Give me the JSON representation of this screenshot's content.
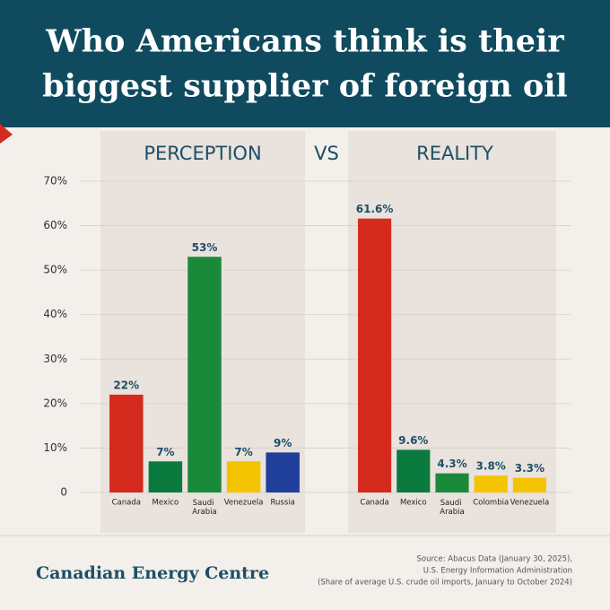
{
  "title_lines": [
    "Who Americans think is their",
    "biggest supplier of foreign oil"
  ],
  "vs": "VS",
  "chart_data": [
    {
      "type": "bar",
      "title": "PERCEPTION",
      "categories": [
        "Canada",
        "Mexico",
        "Saudi Arabia",
        "Venezuela",
        "Russia"
      ],
      "values": [
        22,
        7,
        53,
        7,
        9
      ],
      "value_labels": [
        "22%",
        "7%",
        "53%",
        "7%",
        "9%"
      ],
      "colors": [
        "#d52b1e",
        "#0b7a3e",
        "#1a8a3a",
        "#f4c400",
        "#1f3f9a"
      ],
      "ylim": [
        0,
        70
      ],
      "yticks": [
        0,
        {
          "value": 10,
          "label": "10%"
        },
        {
          "value": 20,
          "label": "20%"
        },
        {
          "value": 30,
          "label": "30%"
        },
        {
          "value": 40,
          "label": "40%"
        },
        {
          "value": 50,
          "label": "50%"
        },
        {
          "value": 60,
          "label": "60%"
        },
        {
          "value": 70,
          "label": "70%"
        }
      ],
      "grid": true
    },
    {
      "type": "bar",
      "title": "REALITY",
      "categories": [
        "Canada",
        "Mexico",
        "Saudi Arabia",
        "Colombia",
        "Venezuela"
      ],
      "values": [
        61.6,
        9.6,
        4.3,
        3.8,
        3.3
      ],
      "value_labels": [
        "61.6%",
        "9.6%",
        "4.3%",
        "3.8%",
        "3.3%"
      ],
      "colors": [
        "#d52b1e",
        "#0b7a3e",
        "#1a8a3a",
        "#f4c400",
        "#f4c400"
      ],
      "ylim": [
        0,
        70
      ]
    }
  ],
  "brand": "Canadian Energy Centre",
  "source_lines": [
    "Source: Abacus Data (January 30, 2025),",
    "U.S. Energy Information Administration",
    "(Share of average U.S. crude oil imports, January to October 2024)"
  ]
}
